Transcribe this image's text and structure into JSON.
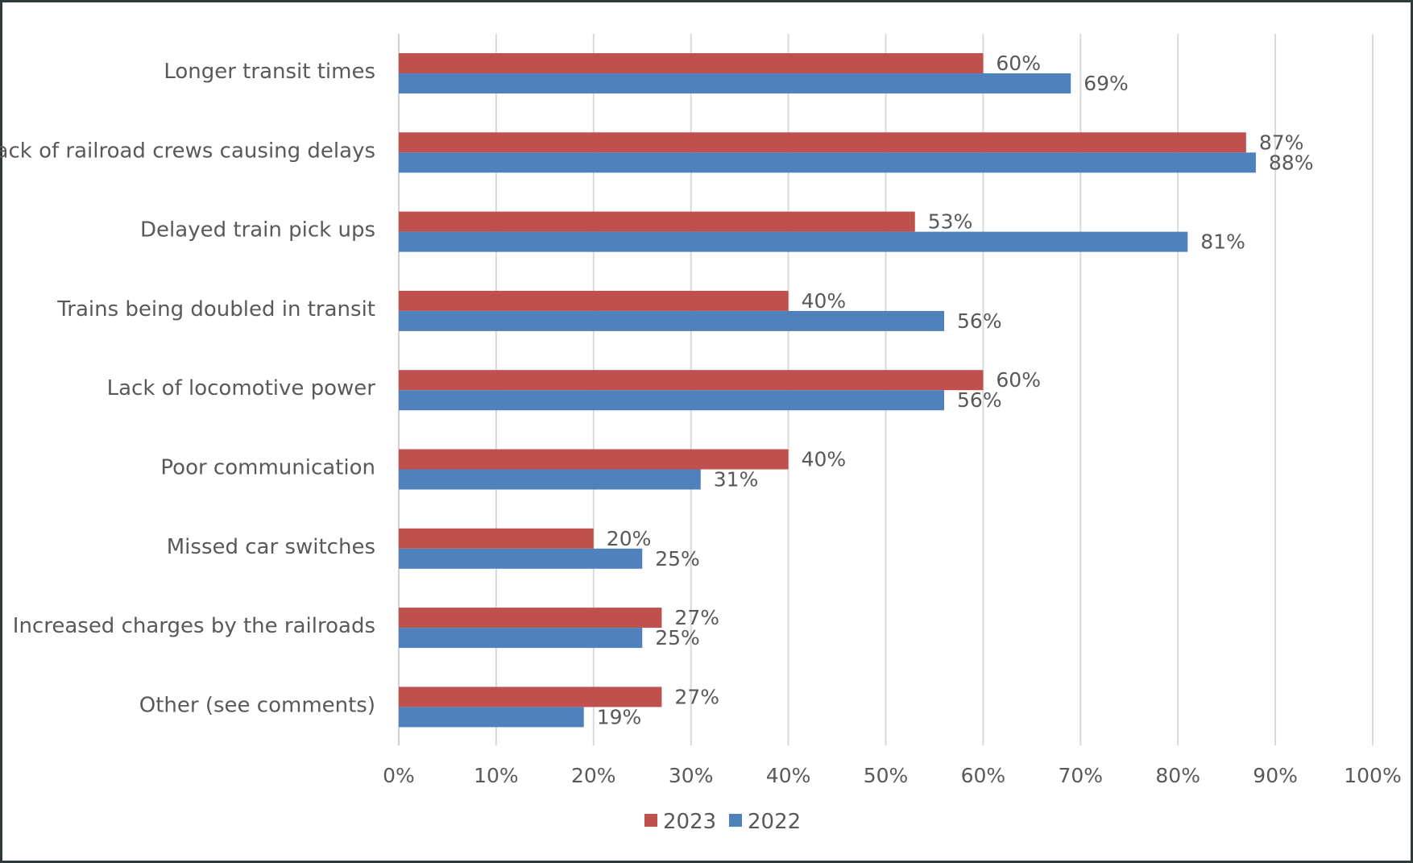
{
  "chart_data": {
    "type": "bar",
    "orientation": "horizontal",
    "title": "",
    "xlabel": "",
    "ylabel": "",
    "xlim": [
      0,
      100
    ],
    "unit": "%",
    "grid": true,
    "legend_position": "bottom",
    "categories": [
      "Longer transit times",
      "Lack of railroad crews causing delays",
      "Delayed train pick ups",
      "Trains being doubled in transit",
      "Lack of locomotive power",
      "Poor communication",
      "Missed car switches",
      "Increased charges by the railroads",
      "Other (see comments)"
    ],
    "x_ticks": [
      "0%",
      "10%",
      "20%",
      "30%",
      "40%",
      "50%",
      "60%",
      "70%",
      "80%",
      "90%",
      "100%"
    ],
    "series": [
      {
        "name": "2023",
        "color": "#c0504d",
        "values": [
          60,
          87,
          53,
          40,
          60,
          40,
          20,
          27,
          27
        ]
      },
      {
        "name": "2022",
        "color": "#4f81bd",
        "values": [
          69,
          88,
          81,
          56,
          56,
          31,
          25,
          25,
          19
        ]
      }
    ]
  }
}
